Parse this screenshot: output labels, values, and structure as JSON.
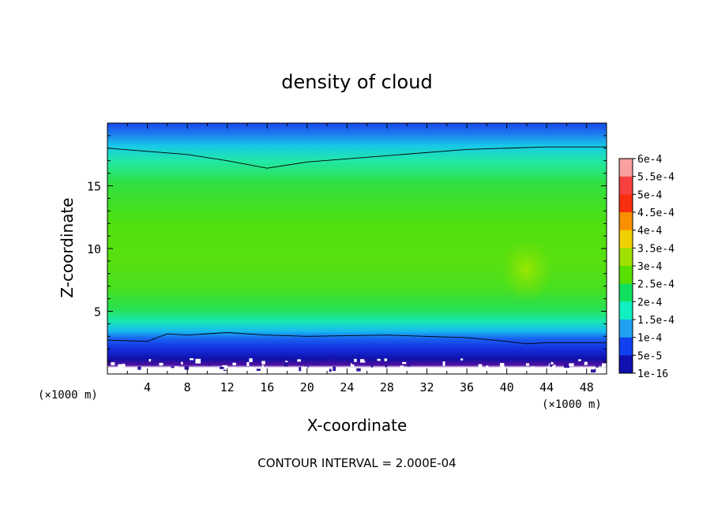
{
  "chart_data": {
    "type": "heatmap",
    "title": "density of cloud",
    "xlabel": "X-coordinate",
    "ylabel": "Z-coordinate",
    "x_unit_left": "(×1000 m)",
    "x_unit_right": "(×1000 m)",
    "footer": "CONTOUR INTERVAL = 2.000E-04",
    "xlim": [
      0,
      50
    ],
    "ylim": [
      0,
      20
    ],
    "x_ticks": [
      "4",
      "8",
      "12",
      "16",
      "20",
      "24",
      "28",
      "32",
      "36",
      "40",
      "44",
      "48"
    ],
    "y_ticks": [
      "5",
      "10",
      "15"
    ],
    "colorbar": {
      "labels": [
        "6e-4",
        "5.5e-4",
        "5e-4",
        "4.5e-4",
        "4e-4",
        "3.5e-4",
        "3e-4",
        "2.5e-4",
        "2e-4",
        "1.5e-4",
        "1e-4",
        "5e-5",
        "1e-16"
      ],
      "colors": [
        "#f8a0a0",
        "#f84040",
        "#f83010",
        "#f89000",
        "#f0d000",
        "#a0e000",
        "#58e000",
        "#10e060",
        "#10f0c0",
        "#20a0f0",
        "#1040f0",
        "#1010b0",
        "#6010a0"
      ]
    },
    "contour_level": "2e-4",
    "contours": [
      {
        "name": "",
        "x": [
          0,
          8,
          12,
          16,
          20,
          28,
          36,
          44,
          50
        ],
        "y": [
          18.0,
          17.5,
          17.0,
          16.4,
          16.9,
          17.4,
          17.9,
          18.1,
          18.1
        ]
      },
      {
        "name": "",
        "x": [
          0,
          4,
          6,
          8,
          12,
          16,
          20,
          28,
          36,
          40,
          42,
          44,
          48,
          50
        ],
        "y": [
          2.7,
          2.6,
          3.2,
          3.1,
          3.3,
          3.1,
          3.0,
          3.1,
          2.9,
          2.6,
          2.4,
          2.5,
          2.5,
          2.5
        ]
      }
    ]
  }
}
